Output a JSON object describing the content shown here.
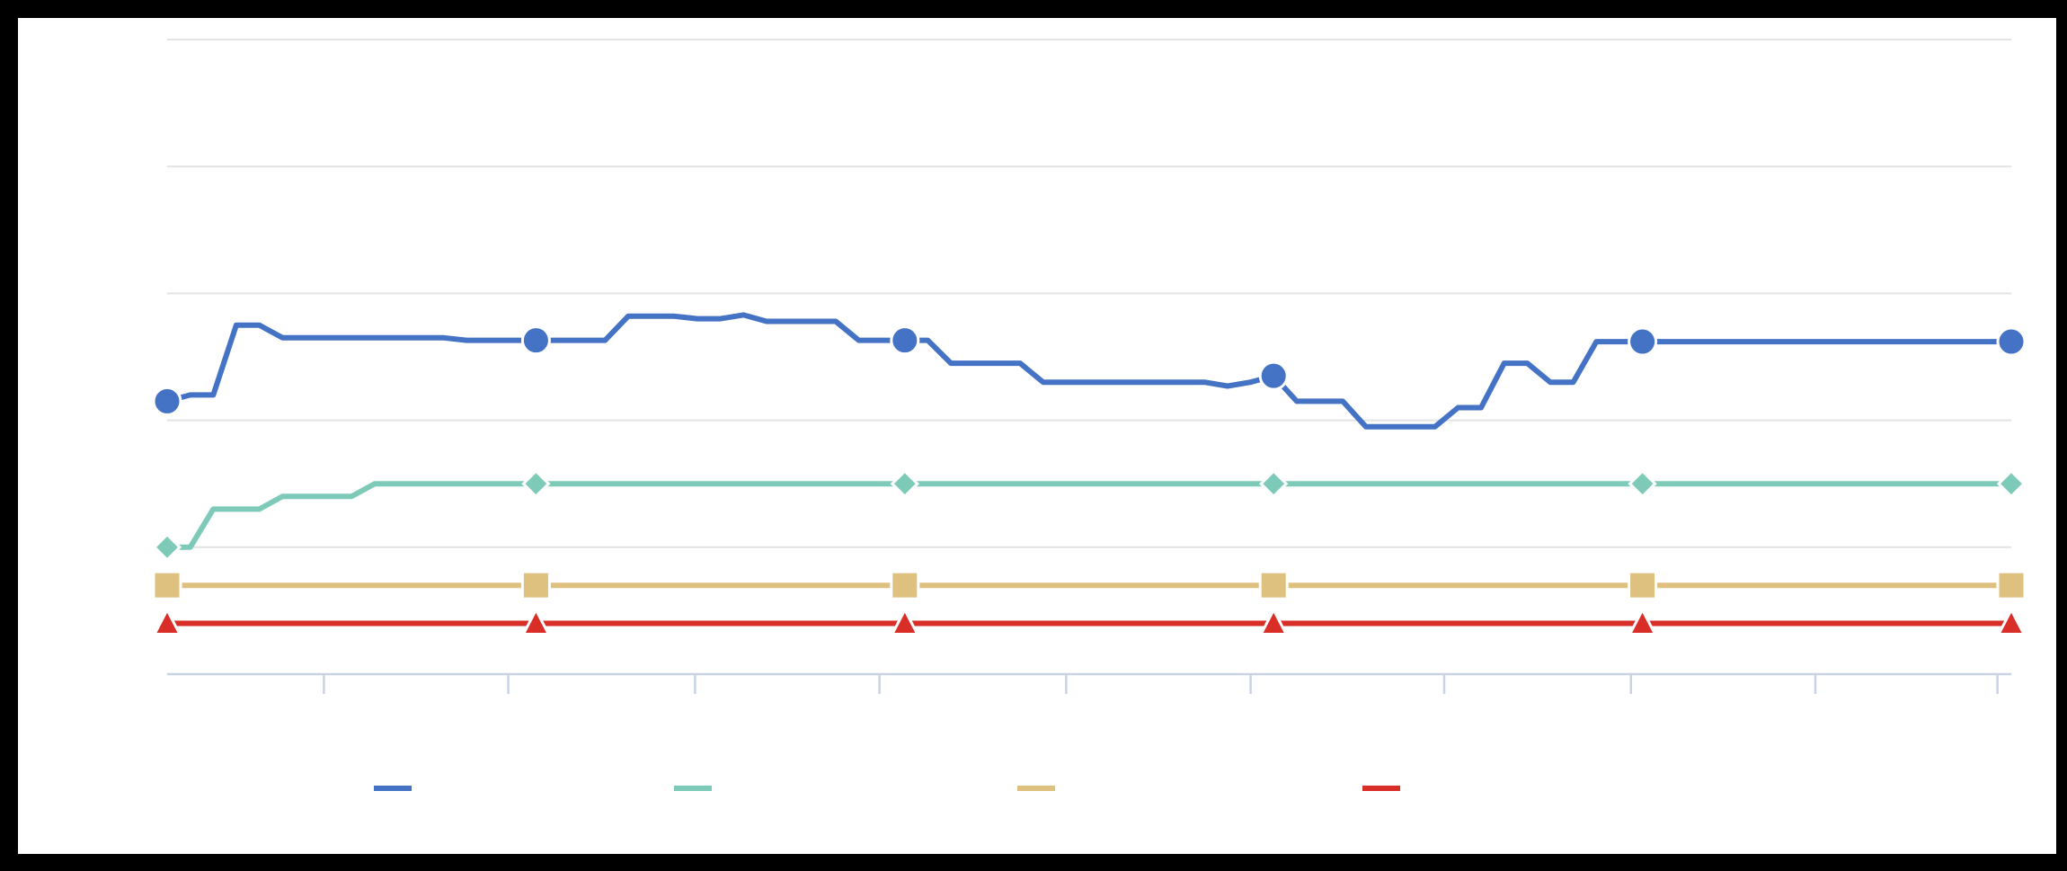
{
  "chart_data": {
    "type": "line",
    "title": "",
    "xlabel": "",
    "ylabel": "",
    "x": [
      0,
      1,
      2,
      3,
      4,
      5,
      6,
      7,
      8,
      9,
      10,
      11,
      12,
      13,
      14,
      15,
      16,
      17,
      18,
      19,
      20,
      21,
      22,
      23,
      24,
      25,
      26,
      27,
      28,
      29,
      30,
      31,
      32,
      33,
      34,
      35,
      36,
      37,
      38,
      39,
      40,
      41,
      42,
      43,
      44,
      45,
      46,
      47,
      48,
      49,
      50,
      51,
      52,
      53,
      54,
      55,
      56,
      57,
      58,
      59,
      60,
      61,
      62,
      63,
      64,
      65,
      66,
      67,
      68,
      69,
      70,
      71,
      72,
      73,
      74,
      75,
      76,
      77,
      78,
      79,
      80
    ],
    "x_ticks": [
      6.8,
      14.8,
      22.9,
      30.9,
      39.0,
      47.0,
      55.4,
      63.5,
      71.5,
      79.4
    ],
    "ylim": [
      0,
      5
    ],
    "y_gridlines": [
      0,
      1,
      2,
      3,
      4,
      5
    ],
    "grid": true,
    "legend_position": "bottom",
    "series": [
      {
        "color": "#4472c4",
        "marker": "circle",
        "values": [
          2.15,
          2.2,
          2.2,
          2.75,
          2.75,
          2.65,
          2.65,
          2.65,
          2.65,
          2.65,
          2.65,
          2.65,
          2.65,
          2.63,
          2.63,
          2.63,
          2.63,
          2.63,
          2.63,
          2.63,
          2.82,
          2.82,
          2.82,
          2.8,
          2.8,
          2.83,
          2.78,
          2.78,
          2.78,
          2.78,
          2.63,
          2.63,
          2.63,
          2.63,
          2.45,
          2.45,
          2.45,
          2.45,
          2.3,
          2.3,
          2.3,
          2.3,
          2.3,
          2.3,
          2.3,
          2.3,
          2.27,
          2.3,
          2.35,
          2.15,
          2.15,
          2.15,
          1.95,
          1.95,
          1.95,
          1.95,
          2.1,
          2.1,
          2.45,
          2.45,
          2.3,
          2.3,
          2.62,
          2.62,
          2.62,
          2.62,
          2.62,
          2.62,
          2.62,
          2.62,
          2.62,
          2.62,
          2.62,
          2.62,
          2.62,
          2.62,
          2.62,
          2.62,
          2.62,
          2.62,
          2.62
        ]
      },
      {
        "color": "#7ecab8",
        "marker": "diamond",
        "values": [
          1,
          1,
          1.3,
          1.3,
          1.3,
          1.4,
          1.4,
          1.4,
          1.4,
          1.5,
          1.5,
          1.5,
          1.5,
          1.5,
          1.5,
          1.5,
          1.5,
          1.5,
          1.5,
          1.5,
          1.5,
          1.5,
          1.5,
          1.5,
          1.5,
          1.5,
          1.5,
          1.5,
          1.5,
          1.5,
          1.5,
          1.5,
          1.5,
          1.5,
          1.5,
          1.5,
          1.5,
          1.5,
          1.5,
          1.5,
          1.5,
          1.5,
          1.5,
          1.5,
          1.5,
          1.5,
          1.5,
          1.5,
          1.5,
          1.5,
          1.5,
          1.5,
          1.5,
          1.5,
          1.5,
          1.5,
          1.5,
          1.5,
          1.5,
          1.5,
          1.5,
          1.5,
          1.5,
          1.5,
          1.5,
          1.5,
          1.5,
          1.5,
          1.5,
          1.5,
          1.5,
          1.5,
          1.5,
          1.5,
          1.5,
          1.5,
          1.5,
          1.5,
          1.5,
          1.5,
          1.5
        ]
      },
      {
        "color": "#dfc17f",
        "marker": "square",
        "values": [
          0.7,
          0.7,
          0.7,
          0.7,
          0.7,
          0.7,
          0.7,
          0.7,
          0.7,
          0.7,
          0.7,
          0.7,
          0.7,
          0.7,
          0.7,
          0.7,
          0.7,
          0.7,
          0.7,
          0.7,
          0.7,
          0.7,
          0.7,
          0.7,
          0.7,
          0.7,
          0.7,
          0.7,
          0.7,
          0.7,
          0.7,
          0.7,
          0.7,
          0.7,
          0.7,
          0.7,
          0.7,
          0.7,
          0.7,
          0.7,
          0.7,
          0.7,
          0.7,
          0.7,
          0.7,
          0.7,
          0.7,
          0.7,
          0.7,
          0.7,
          0.7,
          0.7,
          0.7,
          0.7,
          0.7,
          0.7,
          0.7,
          0.7,
          0.7,
          0.7,
          0.7,
          0.7,
          0.7,
          0.7,
          0.7,
          0.7,
          0.7,
          0.7,
          0.7,
          0.7,
          0.7,
          0.7,
          0.7,
          0.7,
          0.7,
          0.7,
          0.7,
          0.7,
          0.7,
          0.7,
          0.7
        ]
      },
      {
        "color": "#d92d27",
        "marker": "triangle",
        "values": [
          0.4,
          0.4,
          0.4,
          0.4,
          0.4,
          0.4,
          0.4,
          0.4,
          0.4,
          0.4,
          0.4,
          0.4,
          0.4,
          0.4,
          0.4,
          0.4,
          0.4,
          0.4,
          0.4,
          0.4,
          0.4,
          0.4,
          0.4,
          0.4,
          0.4,
          0.4,
          0.4,
          0.4,
          0.4,
          0.4,
          0.4,
          0.4,
          0.4,
          0.4,
          0.4,
          0.4,
          0.4,
          0.4,
          0.4,
          0.4,
          0.4,
          0.4,
          0.4,
          0.4,
          0.4,
          0.4,
          0.4,
          0.4,
          0.4,
          0.4,
          0.4,
          0.4,
          0.4,
          0.4,
          0.4,
          0.4,
          0.4,
          0.4,
          0.4,
          0.4,
          0.4,
          0.4,
          0.4,
          0.4,
          0.4,
          0.4,
          0.4,
          0.4,
          0.4,
          0.4,
          0.4,
          0.4,
          0.4,
          0.4,
          0.4,
          0.4,
          0.4,
          0.4,
          0.4,
          0.4,
          0.4
        ]
      }
    ]
  }
}
